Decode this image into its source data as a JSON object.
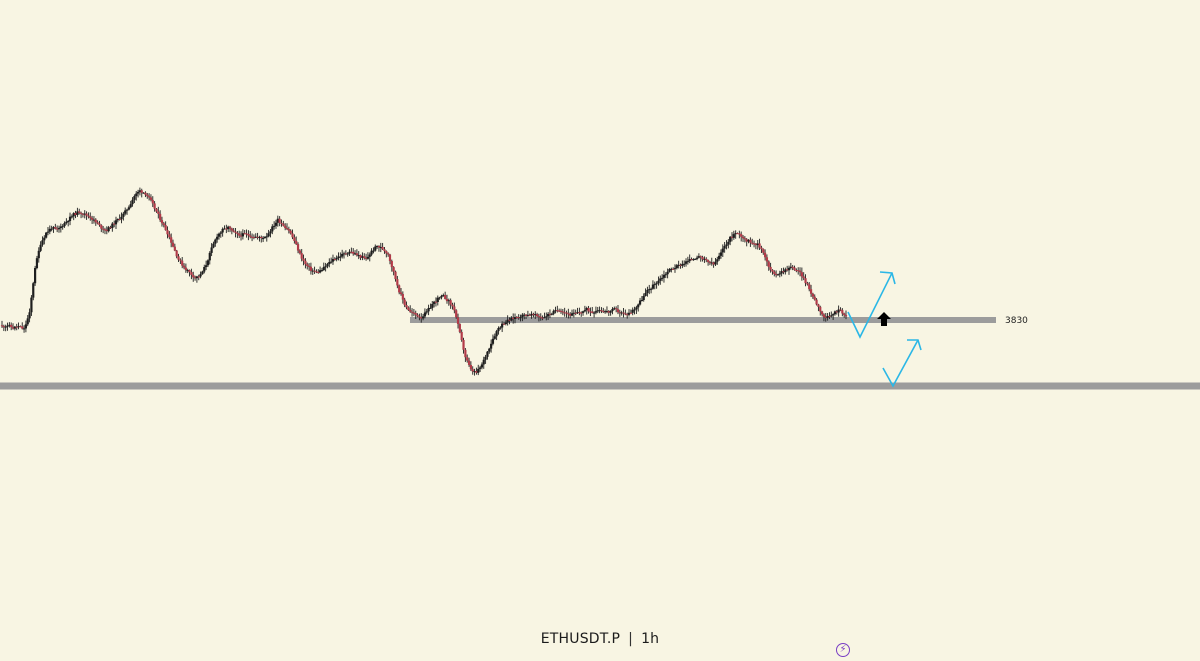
{
  "chart_data": {
    "type": "candlestick",
    "symbol": "ETHUSDT.P",
    "timeframe": "1h",
    "up_color": "#1e1e1e",
    "down_color": "#b23a48",
    "levels": [
      {
        "price": 3830,
        "label": "3830",
        "color": "#9c9c9c"
      },
      {
        "price": 3780,
        "label": "",
        "color": "#9c9c9c"
      }
    ],
    "projection_color": "#2bb7e6",
    "marker_color": "#000000",
    "close_path": [
      3825,
      3826,
      3824,
      3825,
      3823,
      3835,
      3870,
      3888,
      3896,
      3900,
      3898,
      3902,
      3906,
      3910,
      3912,
      3910,
      3908,
      3904,
      3900,
      3898,
      3902,
      3906,
      3910,
      3916,
      3924,
      3928,
      3926,
      3920,
      3912,
      3904,
      3896,
      3886,
      3876,
      3870,
      3866,
      3862,
      3864,
      3872,
      3884,
      3894,
      3898,
      3900,
      3896,
      3894,
      3895,
      3894,
      3893,
      3892,
      3894,
      3900,
      3906,
      3902,
      3898,
      3890,
      3880,
      3872,
      3868,
      3866,
      3868,
      3872,
      3876,
      3878,
      3880,
      3882,
      3880,
      3878,
      3876,
      3882,
      3886,
      3884,
      3880,
      3866,
      3852,
      3842,
      3836,
      3834,
      3832,
      3836,
      3842,
      3846,
      3848,
      3844,
      3838,
      3820,
      3802,
      3792,
      3790,
      3796,
      3806,
      3816,
      3824,
      3828,
      3830,
      3832,
      3833,
      3834,
      3834,
      3833,
      3832,
      3834,
      3836,
      3838,
      3836,
      3834,
      3835,
      3836,
      3838,
      3836,
      3838,
      3837,
      3836,
      3838,
      3836,
      3834,
      3836,
      3840,
      3846,
      3852,
      3856,
      3860,
      3864,
      3868,
      3870,
      3872,
      3874,
      3876,
      3878,
      3876,
      3874,
      3872,
      3878,
      3886,
      3892,
      3896,
      3894,
      3890,
      3889,
      3887,
      3882,
      3870,
      3864,
      3866,
      3868,
      3870,
      3868,
      3864,
      3856,
      3848,
      3840,
      3832,
      3832,
      3836,
      3838,
      3832
    ]
  },
  "annotations": {
    "level_price_label": "3830",
    "arrow": "up-arrow"
  },
  "footer": {
    "symbol": "ETHUSDT.P",
    "separator": "|",
    "timeframe": "1h",
    "badge_icon": "lightning-icon",
    "badge_glyph": "⚡"
  }
}
